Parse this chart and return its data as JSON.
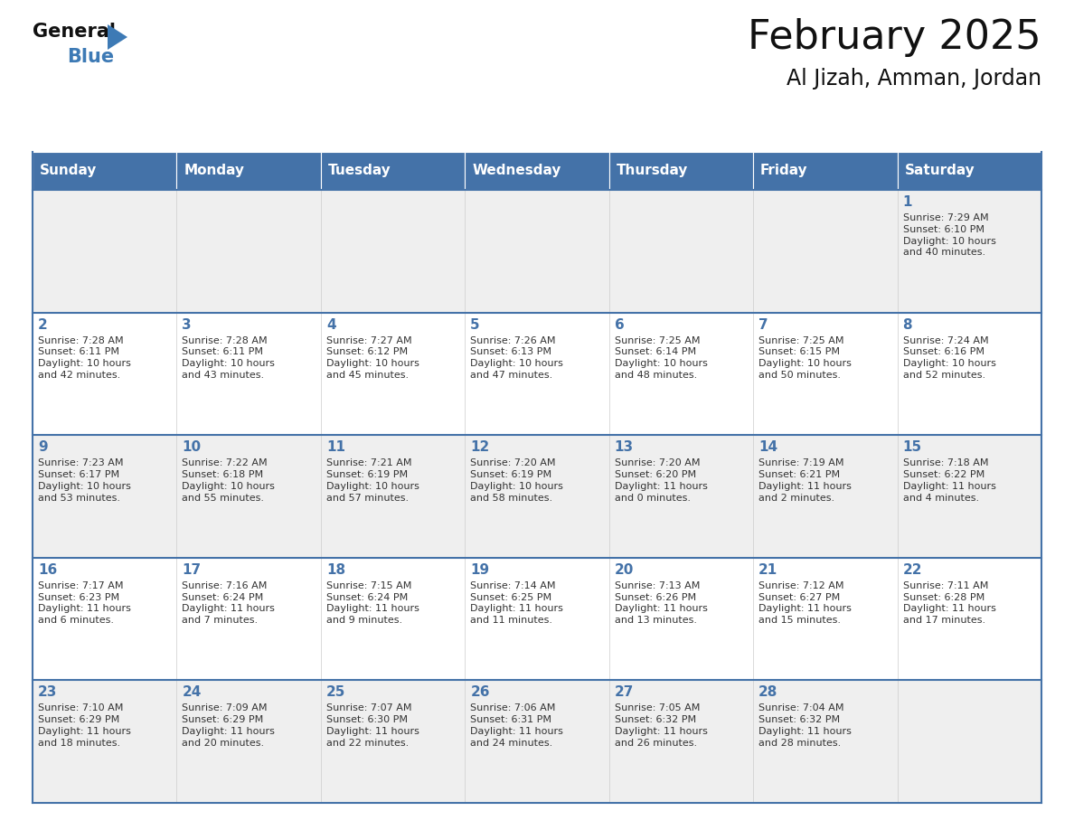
{
  "title": "February 2025",
  "subtitle": "Al Jizah, Amman, Jordan",
  "days_of_week": [
    "Sunday",
    "Monday",
    "Tuesday",
    "Wednesday",
    "Thursday",
    "Friday",
    "Saturday"
  ],
  "header_bg": "#4472a8",
  "header_text": "#FFFFFF",
  "row_bg_light": "#EFEFEF",
  "row_bg_white": "#FFFFFF",
  "border_color": "#4472a8",
  "day_number_color": "#4472a8",
  "info_text_color": "#333333",
  "title_color": "#111111",
  "subtitle_color": "#111111",
  "logo_general_color": "#111111",
  "logo_blue_color": "#3D7AB5",
  "logo_triangle_color": "#3D7AB5",
  "row_backgrounds": [
    "#EFEFEF",
    "#FFFFFF",
    "#EFEFEF",
    "#FFFFFF",
    "#EFEFEF"
  ],
  "calendar_data": [
    [
      {
        "day": null,
        "info": ""
      },
      {
        "day": null,
        "info": ""
      },
      {
        "day": null,
        "info": ""
      },
      {
        "day": null,
        "info": ""
      },
      {
        "day": null,
        "info": ""
      },
      {
        "day": null,
        "info": ""
      },
      {
        "day": 1,
        "info": "Sunrise: 7:29 AM\nSunset: 6:10 PM\nDaylight: 10 hours\nand 40 minutes."
      }
    ],
    [
      {
        "day": 2,
        "info": "Sunrise: 7:28 AM\nSunset: 6:11 PM\nDaylight: 10 hours\nand 42 minutes."
      },
      {
        "day": 3,
        "info": "Sunrise: 7:28 AM\nSunset: 6:11 PM\nDaylight: 10 hours\nand 43 minutes."
      },
      {
        "day": 4,
        "info": "Sunrise: 7:27 AM\nSunset: 6:12 PM\nDaylight: 10 hours\nand 45 minutes."
      },
      {
        "day": 5,
        "info": "Sunrise: 7:26 AM\nSunset: 6:13 PM\nDaylight: 10 hours\nand 47 minutes."
      },
      {
        "day": 6,
        "info": "Sunrise: 7:25 AM\nSunset: 6:14 PM\nDaylight: 10 hours\nand 48 minutes."
      },
      {
        "day": 7,
        "info": "Sunrise: 7:25 AM\nSunset: 6:15 PM\nDaylight: 10 hours\nand 50 minutes."
      },
      {
        "day": 8,
        "info": "Sunrise: 7:24 AM\nSunset: 6:16 PM\nDaylight: 10 hours\nand 52 minutes."
      }
    ],
    [
      {
        "day": 9,
        "info": "Sunrise: 7:23 AM\nSunset: 6:17 PM\nDaylight: 10 hours\nand 53 minutes."
      },
      {
        "day": 10,
        "info": "Sunrise: 7:22 AM\nSunset: 6:18 PM\nDaylight: 10 hours\nand 55 minutes."
      },
      {
        "day": 11,
        "info": "Sunrise: 7:21 AM\nSunset: 6:19 PM\nDaylight: 10 hours\nand 57 minutes."
      },
      {
        "day": 12,
        "info": "Sunrise: 7:20 AM\nSunset: 6:19 PM\nDaylight: 10 hours\nand 58 minutes."
      },
      {
        "day": 13,
        "info": "Sunrise: 7:20 AM\nSunset: 6:20 PM\nDaylight: 11 hours\nand 0 minutes."
      },
      {
        "day": 14,
        "info": "Sunrise: 7:19 AM\nSunset: 6:21 PM\nDaylight: 11 hours\nand 2 minutes."
      },
      {
        "day": 15,
        "info": "Sunrise: 7:18 AM\nSunset: 6:22 PM\nDaylight: 11 hours\nand 4 minutes."
      }
    ],
    [
      {
        "day": 16,
        "info": "Sunrise: 7:17 AM\nSunset: 6:23 PM\nDaylight: 11 hours\nand 6 minutes."
      },
      {
        "day": 17,
        "info": "Sunrise: 7:16 AM\nSunset: 6:24 PM\nDaylight: 11 hours\nand 7 minutes."
      },
      {
        "day": 18,
        "info": "Sunrise: 7:15 AM\nSunset: 6:24 PM\nDaylight: 11 hours\nand 9 minutes."
      },
      {
        "day": 19,
        "info": "Sunrise: 7:14 AM\nSunset: 6:25 PM\nDaylight: 11 hours\nand 11 minutes."
      },
      {
        "day": 20,
        "info": "Sunrise: 7:13 AM\nSunset: 6:26 PM\nDaylight: 11 hours\nand 13 minutes."
      },
      {
        "day": 21,
        "info": "Sunrise: 7:12 AM\nSunset: 6:27 PM\nDaylight: 11 hours\nand 15 minutes."
      },
      {
        "day": 22,
        "info": "Sunrise: 7:11 AM\nSunset: 6:28 PM\nDaylight: 11 hours\nand 17 minutes."
      }
    ],
    [
      {
        "day": 23,
        "info": "Sunrise: 7:10 AM\nSunset: 6:29 PM\nDaylight: 11 hours\nand 18 minutes."
      },
      {
        "day": 24,
        "info": "Sunrise: 7:09 AM\nSunset: 6:29 PM\nDaylight: 11 hours\nand 20 minutes."
      },
      {
        "day": 25,
        "info": "Sunrise: 7:07 AM\nSunset: 6:30 PM\nDaylight: 11 hours\nand 22 minutes."
      },
      {
        "day": 26,
        "info": "Sunrise: 7:06 AM\nSunset: 6:31 PM\nDaylight: 11 hours\nand 24 minutes."
      },
      {
        "day": 27,
        "info": "Sunrise: 7:05 AM\nSunset: 6:32 PM\nDaylight: 11 hours\nand 26 minutes."
      },
      {
        "day": 28,
        "info": "Sunrise: 7:04 AM\nSunset: 6:32 PM\nDaylight: 11 hours\nand 28 minutes."
      },
      {
        "day": null,
        "info": ""
      }
    ]
  ]
}
